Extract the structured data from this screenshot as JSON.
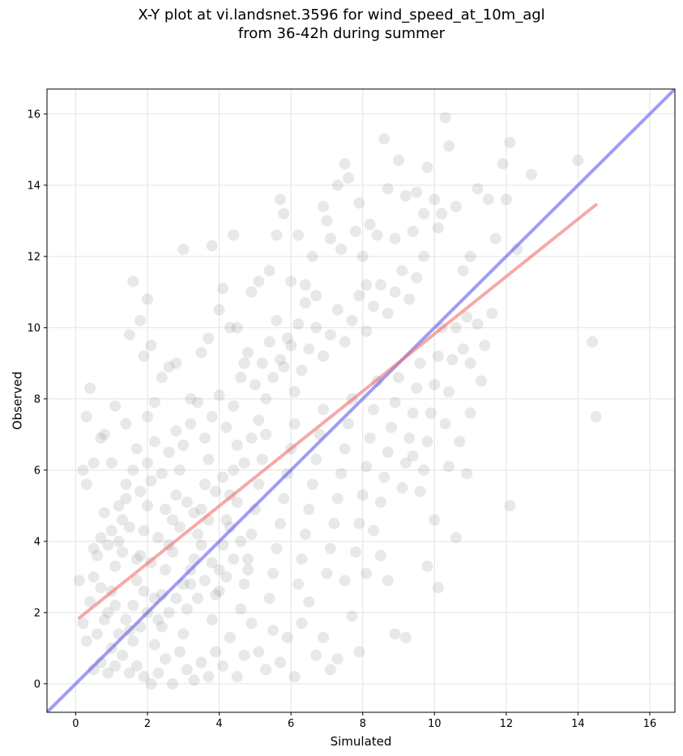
{
  "chart_data": {
    "type": "scatter",
    "title_line1": "X-Y plot at vi.landsnet.3596 for wind_speed_at_10m_agl",
    "title_line2": "from 36-42h during summer",
    "xlabel": "Simulated",
    "ylabel": "Observed",
    "xlim": [
      -0.8,
      16.7
    ],
    "ylim": [
      -0.8,
      16.7
    ],
    "xticks": [
      0,
      2,
      4,
      6,
      8,
      10,
      12,
      14,
      16
    ],
    "yticks": [
      0,
      2,
      4,
      6,
      8,
      10,
      12,
      14,
      16
    ],
    "grid": true,
    "point_color": "#808080",
    "point_alpha": 0.18,
    "identity_line": {
      "x": [
        -0.8,
        16.7
      ],
      "y": [
        -0.8,
        16.7
      ],
      "color": "#5b5bf0"
    },
    "regression_line": {
      "x": [
        0.1,
        14.5
      ],
      "y": [
        1.85,
        13.45
      ],
      "color": "#f07070"
    },
    "points": [
      [
        0.1,
        2.9
      ],
      [
        0.2,
        6.0
      ],
      [
        0.3,
        5.6
      ],
      [
        0.3,
        7.5
      ],
      [
        0.4,
        8.3
      ],
      [
        0.5,
        6.2
      ],
      [
        0.7,
        6.9
      ],
      [
        0.8,
        7.0
      ],
      [
        1.0,
        6.2
      ],
      [
        1.1,
        7.8
      ],
      [
        1.4,
        7.3
      ],
      [
        1.5,
        9.8
      ],
      [
        1.6,
        11.3
      ],
      [
        1.7,
        6.6
      ],
      [
        1.8,
        10.2
      ],
      [
        1.9,
        9.2
      ],
      [
        2.0,
        10.8
      ],
      [
        2.1,
        9.5
      ],
      [
        2.0,
        7.5
      ],
      [
        2.2,
        7.9
      ],
      [
        2.4,
        8.6
      ],
      [
        2.6,
        8.9
      ],
      [
        2.8,
        9.0
      ],
      [
        3.0,
        12.2
      ],
      [
        3.2,
        8.0
      ],
      [
        3.5,
        9.3
      ],
      [
        3.7,
        9.7
      ],
      [
        3.8,
        12.3
      ],
      [
        4.0,
        10.5
      ],
      [
        4.1,
        11.1
      ],
      [
        4.3,
        10.0
      ],
      [
        4.4,
        12.6
      ],
      [
        4.5,
        10.0
      ],
      [
        4.7,
        9.0
      ],
      [
        4.9,
        11.0
      ],
      [
        5.1,
        11.3
      ],
      [
        5.4,
        11.6
      ],
      [
        5.6,
        12.6
      ],
      [
        5.7,
        13.6
      ],
      [
        5.8,
        13.2
      ],
      [
        6.0,
        11.3
      ],
      [
        6.2,
        12.6
      ],
      [
        6.4,
        11.2
      ],
      [
        6.6,
        12.0
      ],
      [
        6.7,
        10.9
      ],
      [
        6.9,
        13.4
      ],
      [
        7.0,
        13.0
      ],
      [
        7.1,
        12.5
      ],
      [
        7.3,
        14.0
      ],
      [
        7.4,
        12.2
      ],
      [
        7.5,
        14.6
      ],
      [
        7.6,
        14.2
      ],
      [
        7.8,
        12.7
      ],
      [
        7.9,
        13.5
      ],
      [
        8.0,
        12.0
      ],
      [
        8.1,
        11.2
      ],
      [
        8.2,
        12.9
      ],
      [
        8.4,
        12.6
      ],
      [
        8.6,
        15.3
      ],
      [
        8.7,
        13.9
      ],
      [
        8.9,
        12.5
      ],
      [
        9.0,
        14.7
      ],
      [
        9.2,
        13.7
      ],
      [
        9.4,
        12.7
      ],
      [
        9.5,
        13.8
      ],
      [
        9.7,
        13.2
      ],
      [
        9.8,
        14.5
      ],
      [
        10.0,
        13.6
      ],
      [
        10.1,
        12.8
      ],
      [
        10.2,
        13.2
      ],
      [
        10.3,
        15.9
      ],
      [
        10.4,
        15.1
      ],
      [
        10.6,
        13.4
      ],
      [
        10.8,
        11.6
      ],
      [
        11.0,
        12.0
      ],
      [
        11.2,
        13.9
      ],
      [
        11.5,
        13.6
      ],
      [
        11.7,
        12.5
      ],
      [
        11.9,
        14.6
      ],
      [
        12.0,
        13.6
      ],
      [
        12.1,
        15.2
      ],
      [
        12.3,
        12.2
      ],
      [
        12.7,
        14.3
      ],
      [
        14.0,
        14.7
      ],
      [
        14.4,
        9.6
      ],
      [
        14.5,
        7.5
      ],
      [
        12.1,
        5.0
      ],
      [
        11.3,
        8.5
      ],
      [
        11.0,
        7.6
      ],
      [
        10.9,
        5.9
      ],
      [
        10.6,
        4.1
      ],
      [
        10.4,
        6.1
      ],
      [
        10.1,
        2.7
      ],
      [
        10.0,
        4.6
      ],
      [
        9.8,
        3.3
      ],
      [
        9.6,
        5.4
      ],
      [
        9.4,
        6.4
      ],
      [
        9.2,
        1.3
      ],
      [
        8.9,
        1.4
      ],
      [
        8.7,
        2.9
      ],
      [
        8.5,
        3.6
      ],
      [
        8.3,
        4.3
      ],
      [
        8.1,
        3.1
      ],
      [
        7.9,
        0.9
      ],
      [
        7.7,
        1.9
      ],
      [
        7.5,
        2.9
      ],
      [
        7.3,
        0.7
      ],
      [
        7.1,
        0.4
      ],
      [
        6.9,
        1.3
      ],
      [
        6.7,
        0.8
      ],
      [
        6.5,
        2.3
      ],
      [
        6.3,
        1.7
      ],
      [
        6.1,
        0.2
      ],
      [
        5.9,
        1.3
      ],
      [
        5.7,
        0.6
      ],
      [
        5.5,
        1.5
      ],
      [
        5.3,
        0.4
      ],
      [
        5.1,
        0.9
      ],
      [
        4.9,
        1.7
      ],
      [
        4.7,
        0.8
      ],
      [
        4.5,
        0.2
      ],
      [
        4.3,
        1.3
      ],
      [
        4.1,
        0.5
      ],
      [
        3.9,
        0.9
      ],
      [
        3.7,
        0.2
      ],
      [
        3.5,
        0.6
      ],
      [
        3.3,
        0.1
      ],
      [
        3.1,
        0.4
      ],
      [
        2.9,
        0.9
      ],
      [
        2.7,
        0.0
      ],
      [
        2.5,
        0.7
      ],
      [
        2.3,
        0.3
      ],
      [
        2.1,
        0.0
      ],
      [
        1.9,
        0.2
      ],
      [
        1.7,
        0.5
      ],
      [
        1.5,
        0.3
      ],
      [
        1.3,
        0.8
      ],
      [
        1.1,
        0.5
      ],
      [
        0.9,
        0.3
      ],
      [
        0.7,
        0.6
      ],
      [
        0.5,
        0.4
      ],
      [
        0.3,
        1.2
      ],
      [
        0.2,
        1.7
      ],
      [
        0.4,
        2.3
      ],
      [
        0.5,
        3.0
      ],
      [
        0.6,
        3.6
      ],
      [
        0.7,
        4.1
      ],
      [
        0.8,
        4.8
      ],
      [
        0.9,
        2.0
      ],
      [
        1.0,
        2.6
      ],
      [
        1.1,
        3.3
      ],
      [
        1.2,
        4.0
      ],
      [
        1.3,
        4.6
      ],
      [
        1.4,
        5.2
      ],
      [
        1.5,
        1.5
      ],
      [
        1.6,
        2.2
      ],
      [
        1.7,
        2.9
      ],
      [
        1.8,
        3.6
      ],
      [
        1.9,
        4.3
      ],
      [
        2.0,
        5.0
      ],
      [
        2.1,
        5.7
      ],
      [
        2.2,
        1.1
      ],
      [
        2.3,
        1.8
      ],
      [
        2.4,
        2.5
      ],
      [
        2.5,
        3.2
      ],
      [
        2.6,
        3.9
      ],
      [
        2.7,
        4.6
      ],
      [
        2.8,
        5.3
      ],
      [
        2.9,
        6.0
      ],
      [
        3.0,
        1.4
      ],
      [
        3.1,
        2.1
      ],
      [
        3.2,
        2.8
      ],
      [
        3.3,
        3.5
      ],
      [
        3.4,
        4.2
      ],
      [
        3.5,
        4.9
      ],
      [
        3.6,
        5.6
      ],
      [
        3.7,
        6.3
      ],
      [
        3.8,
        1.8
      ],
      [
        3.9,
        2.5
      ],
      [
        4.0,
        3.2
      ],
      [
        4.1,
        3.9
      ],
      [
        4.2,
        4.6
      ],
      [
        4.3,
        5.3
      ],
      [
        4.4,
        6.0
      ],
      [
        4.5,
        6.7
      ],
      [
        4.6,
        2.1
      ],
      [
        4.7,
        2.8
      ],
      [
        4.8,
        3.5
      ],
      [
        4.9,
        4.2
      ],
      [
        5.0,
        4.9
      ],
      [
        5.1,
        5.6
      ],
      [
        5.2,
        6.3
      ],
      [
        5.3,
        7.0
      ],
      [
        5.4,
        2.4
      ],
      [
        5.5,
        3.1
      ],
      [
        5.6,
        3.8
      ],
      [
        5.7,
        4.5
      ],
      [
        5.8,
        5.2
      ],
      [
        5.9,
        5.9
      ],
      [
        6.0,
        6.6
      ],
      [
        6.1,
        7.3
      ],
      [
        6.2,
        2.8
      ],
      [
        6.3,
        3.5
      ],
      [
        6.4,
        4.2
      ],
      [
        6.5,
        4.9
      ],
      [
        6.6,
        5.6
      ],
      [
        6.7,
        6.3
      ],
      [
        6.8,
        7.0
      ],
      [
        6.9,
        7.7
      ],
      [
        7.0,
        3.1
      ],
      [
        7.1,
        3.8
      ],
      [
        7.2,
        4.5
      ],
      [
        7.3,
        5.2
      ],
      [
        7.4,
        5.9
      ],
      [
        7.5,
        6.6
      ],
      [
        7.6,
        7.3
      ],
      [
        7.7,
        8.0
      ],
      [
        7.8,
        3.7
      ],
      [
        7.9,
        4.5
      ],
      [
        8.0,
        5.3
      ],
      [
        8.1,
        6.1
      ],
      [
        8.2,
        6.9
      ],
      [
        8.3,
        7.7
      ],
      [
        8.4,
        8.5
      ],
      [
        8.5,
        5.1
      ],
      [
        8.6,
        5.8
      ],
      [
        8.7,
        6.5
      ],
      [
        8.8,
        7.2
      ],
      [
        8.9,
        7.9
      ],
      [
        9.0,
        8.6
      ],
      [
        9.1,
        5.5
      ],
      [
        9.2,
        6.2
      ],
      [
        9.3,
        6.9
      ],
      [
        9.4,
        7.6
      ],
      [
        9.5,
        8.3
      ],
      [
        9.6,
        9.0
      ],
      [
        9.7,
        6.0
      ],
      [
        9.8,
        6.8
      ],
      [
        9.9,
        7.6
      ],
      [
        10.0,
        8.4
      ],
      [
        10.1,
        9.2
      ],
      [
        10.2,
        10.0
      ],
      [
        10.3,
        7.3
      ],
      [
        10.4,
        8.2
      ],
      [
        10.5,
        9.1
      ],
      [
        10.6,
        10.0
      ],
      [
        10.7,
        6.8
      ],
      [
        10.8,
        9.4
      ],
      [
        10.9,
        10.3
      ],
      [
        11.0,
        9.0
      ],
      [
        11.2,
        10.1
      ],
      [
        11.4,
        9.5
      ],
      [
        11.6,
        10.4
      ],
      [
        0.5,
        3.8
      ],
      [
        0.7,
        2.7
      ],
      [
        0.9,
        3.9
      ],
      [
        1.1,
        2.2
      ],
      [
        1.3,
        3.7
      ],
      [
        1.5,
        4.4
      ],
      [
        1.7,
        3.5
      ],
      [
        1.9,
        2.6
      ],
      [
        2.1,
        3.4
      ],
      [
        2.3,
        4.1
      ],
      [
        2.5,
        4.9
      ],
      [
        2.7,
        3.7
      ],
      [
        2.9,
        4.4
      ],
      [
        3.1,
        5.1
      ],
      [
        3.3,
        4.8
      ],
      [
        3.5,
        3.9
      ],
      [
        3.7,
        4.6
      ],
      [
        3.9,
        5.4
      ],
      [
        4.1,
        5.8
      ],
      [
        4.3,
        4.4
      ],
      [
        4.5,
        5.1
      ],
      [
        4.7,
        6.2
      ],
      [
        4.9,
        6.9
      ],
      [
        5.1,
        7.4
      ],
      [
        5.3,
        8.0
      ],
      [
        5.5,
        8.6
      ],
      [
        5.7,
        9.1
      ],
      [
        5.9,
        9.7
      ],
      [
        6.1,
        8.2
      ],
      [
        6.3,
        8.8
      ],
      [
        6.5,
        9.4
      ],
      [
        6.7,
        10.0
      ],
      [
        6.9,
        9.2
      ],
      [
        7.1,
        9.8
      ],
      [
        7.3,
        10.5
      ],
      [
        7.5,
        9.6
      ],
      [
        7.7,
        10.2
      ],
      [
        7.9,
        10.9
      ],
      [
        8.1,
        9.9
      ],
      [
        8.3,
        10.6
      ],
      [
        8.5,
        11.2
      ],
      [
        8.7,
        10.4
      ],
      [
        8.9,
        11.0
      ],
      [
        9.1,
        11.6
      ],
      [
        9.3,
        10.8
      ],
      [
        9.5,
        11.4
      ],
      [
        9.7,
        12.0
      ],
      [
        5.2,
        9.0
      ],
      [
        5.4,
        9.6
      ],
      [
        5.6,
        10.2
      ],
      [
        5.8,
        8.9
      ],
      [
        6.0,
        9.5
      ],
      [
        6.2,
        10.1
      ],
      [
        6.4,
        10.7
      ],
      [
        4.6,
        8.6
      ],
      [
        4.8,
        9.3
      ],
      [
        5.0,
        8.4
      ],
      [
        1.0,
        1.0
      ],
      [
        1.2,
        1.4
      ],
      [
        1.4,
        1.8
      ],
      [
        1.6,
        1.2
      ],
      [
        1.8,
        1.6
      ],
      [
        2.0,
        2.0
      ],
      [
        2.2,
        2.4
      ],
      [
        2.4,
        1.6
      ],
      [
        2.6,
        2.0
      ],
      [
        2.8,
        2.4
      ],
      [
        3.0,
        2.8
      ],
      [
        3.2,
        3.2
      ],
      [
        3.4,
        2.4
      ],
      [
        3.6,
        2.9
      ],
      [
        3.8,
        3.4
      ],
      [
        4.0,
        2.6
      ],
      [
        4.2,
        3.0
      ],
      [
        4.4,
        3.5
      ],
      [
        4.6,
        4.0
      ],
      [
        4.8,
        3.2
      ],
      [
        0.6,
        1.4
      ],
      [
        0.8,
        1.8
      ],
      [
        1.0,
        4.3
      ],
      [
        1.2,
        5.0
      ],
      [
        1.4,
        5.6
      ],
      [
        1.6,
        6.0
      ],
      [
        1.8,
        5.4
      ],
      [
        2.0,
        6.2
      ],
      [
        2.2,
        6.8
      ],
      [
        2.4,
        5.9
      ],
      [
        2.6,
        6.5
      ],
      [
        2.8,
        7.1
      ],
      [
        3.0,
        6.7
      ],
      [
        3.2,
        7.3
      ],
      [
        3.4,
        7.9
      ],
      [
        3.6,
        6.9
      ],
      [
        3.8,
        7.5
      ],
      [
        4.0,
        8.1
      ],
      [
        4.2,
        7.2
      ],
      [
        4.4,
        7.8
      ]
    ]
  }
}
